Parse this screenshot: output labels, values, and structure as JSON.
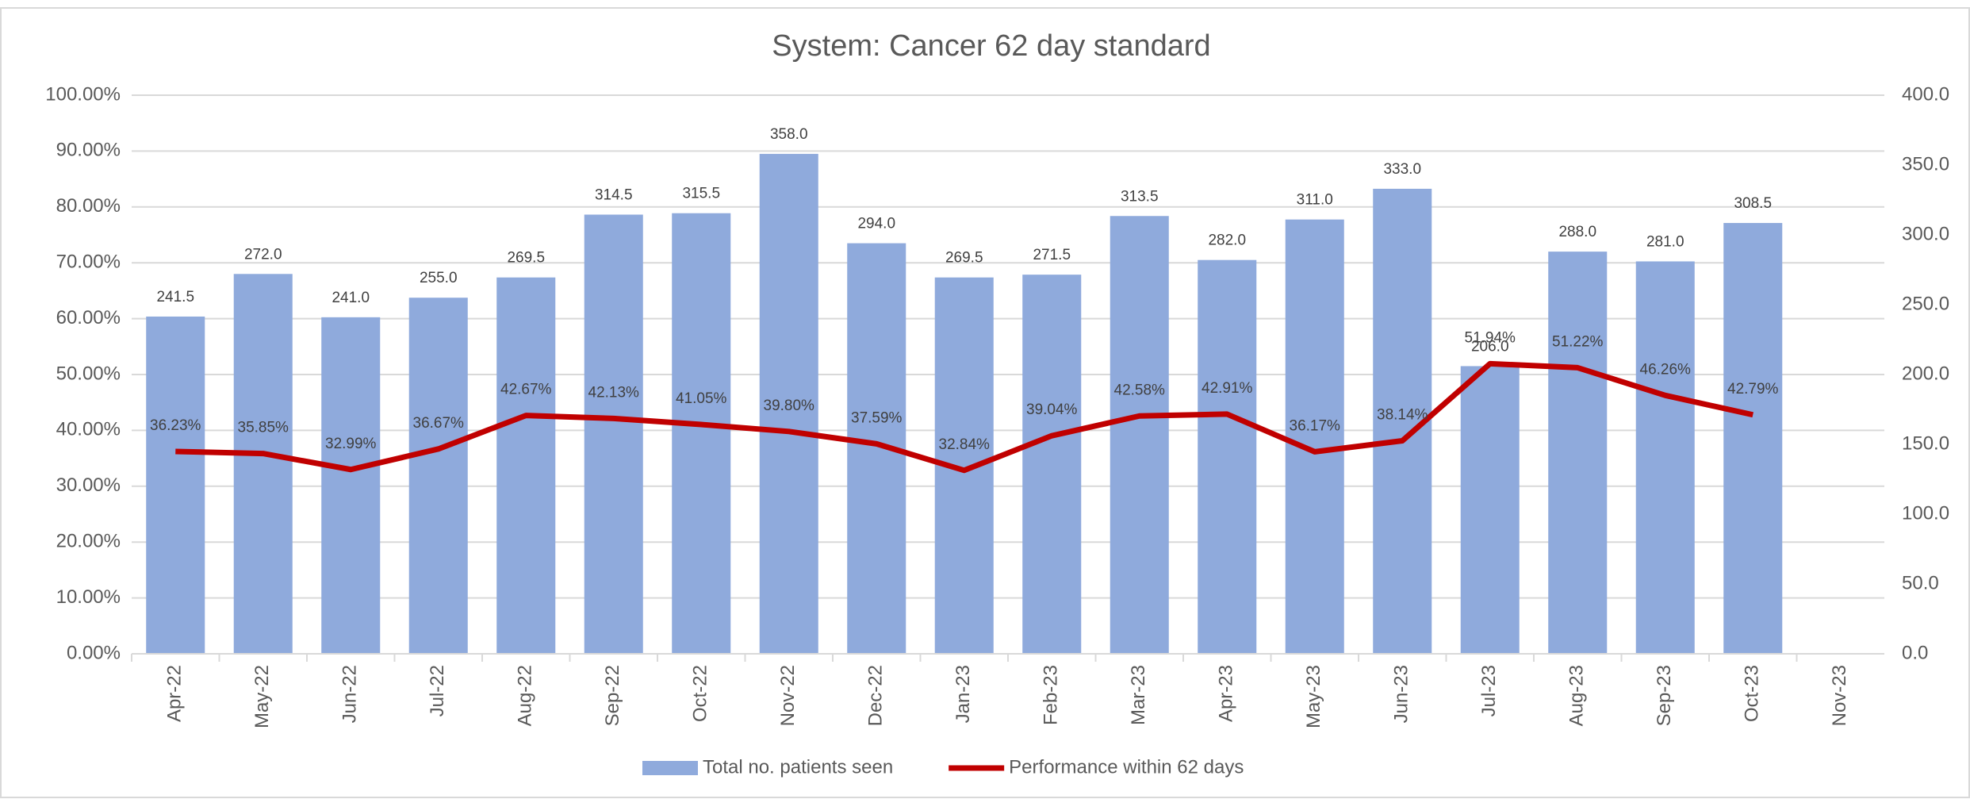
{
  "chart_data": {
    "type": "combo",
    "title": "System: Cancer 62 day standard",
    "categories": [
      "Apr-22",
      "May-22",
      "Jun-22",
      "Jul-22",
      "Aug-22",
      "Sep-22",
      "Oct-22",
      "Nov-22",
      "Dec-22",
      "Jan-23",
      "Feb-23",
      "Mar-23",
      "Apr-23",
      "May-23",
      "Jun-23",
      "Jul-23",
      "Aug-23",
      "Sep-23",
      "Oct-23",
      "Nov-23"
    ],
    "series": [
      {
        "name": "Total no. patients seen",
        "type": "bar",
        "axis": "y2",
        "color": "#8faadc",
        "values": [
          241.5,
          272.0,
          241.0,
          255.0,
          269.5,
          314.5,
          315.5,
          358.0,
          294.0,
          269.5,
          271.5,
          313.5,
          282.0,
          311.0,
          333.0,
          206.0,
          288.0,
          281.0,
          308.5,
          null
        ],
        "value_labels": [
          "241.5",
          "272.0",
          "241.0",
          "255.0",
          "269.5",
          "314.5",
          "315.5",
          "358.0",
          "294.0",
          "269.5",
          "271.5",
          "313.5",
          "282.0",
          "311.0",
          "333.0",
          "206.0",
          "288.0",
          "281.0",
          "308.5",
          null
        ]
      },
      {
        "name": "Performance within 62 days",
        "type": "line",
        "color": "#c00000",
        "values": [
          36.23,
          35.85,
          32.99,
          36.67,
          42.67,
          42.13,
          41.05,
          39.8,
          37.59,
          32.84,
          39.04,
          42.58,
          42.91,
          36.17,
          38.14,
          51.94,
          51.22,
          46.26,
          42.79,
          null
        ],
        "value_labels": [
          "36.23%",
          "35.85%",
          "32.99%",
          "36.67%",
          "42.67%",
          "42.13%",
          "41.05%",
          "39.80%",
          "37.59%",
          "32.84%",
          "39.04%",
          "42.58%",
          "42.91%",
          "36.17%",
          "38.14%",
          "51.94%",
          "51.22%",
          "46.26%",
          "42.79%",
          null
        ]
      }
    ],
    "ylim": [
      0,
      100
    ],
    "yticks": [
      {
        "value": 0,
        "label": "0.00%"
      },
      {
        "value": 10,
        "label": "10.00%"
      },
      {
        "value": 20,
        "label": "20.00%"
      },
      {
        "value": 30,
        "label": "30.00%"
      },
      {
        "value": 40,
        "label": "40.00%"
      },
      {
        "value": 50,
        "label": "50.00%"
      },
      {
        "value": 60,
        "label": "60.00%"
      },
      {
        "value": 70,
        "label": "70.00%"
      },
      {
        "value": 80,
        "label": "80.00%"
      },
      {
        "value": 90,
        "label": "90.00%"
      },
      {
        "value": 100,
        "label": "100.00%"
      }
    ],
    "y2lim": [
      0,
      400
    ],
    "y2ticks": [
      {
        "value": 0,
        "label": "0.0"
      },
      {
        "value": 50,
        "label": "50.0"
      },
      {
        "value": 100,
        "label": "100.0"
      },
      {
        "value": 150,
        "label": "150.0"
      },
      {
        "value": 200,
        "label": "200.0"
      },
      {
        "value": 250,
        "label": "250.0"
      },
      {
        "value": 300,
        "label": "300.0"
      },
      {
        "value": 350,
        "label": "350.0"
      },
      {
        "value": 400,
        "label": "400.0"
      }
    ],
    "grid": true,
    "legend": "bottom"
  }
}
